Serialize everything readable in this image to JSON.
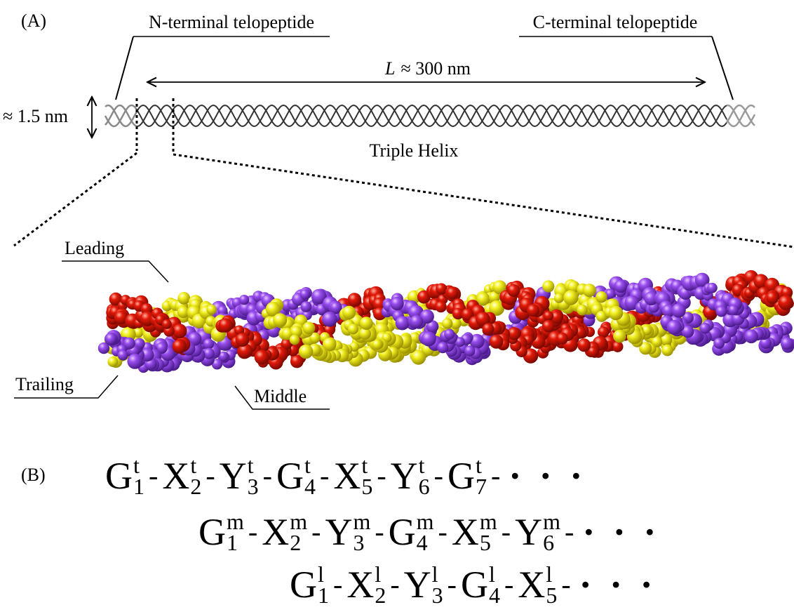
{
  "panel_a": {
    "label": "(A)",
    "n_terminal": "N-terminal telopeptide",
    "c_terminal": "C-terminal telopeptide",
    "length_symbol": "L",
    "length_value": "≈ 300 nm",
    "width": "≈ 1.5 nm",
    "helix": "Triple Helix",
    "strands": {
      "leading": "Leading",
      "trailing": "Trailing",
      "middle": "Middle"
    }
  },
  "panel_b": {
    "label": "(B)",
    "rows": [
      {
        "residues": [
          {
            "letter": "G",
            "chain": "t",
            "index": "1"
          },
          {
            "letter": "X",
            "chain": "t",
            "index": "2"
          },
          {
            "letter": "Y",
            "chain": "t",
            "index": "3"
          },
          {
            "letter": "G",
            "chain": "t",
            "index": "4"
          },
          {
            "letter": "X",
            "chain": "t",
            "index": "5"
          },
          {
            "letter": "Y",
            "chain": "t",
            "index": "6"
          },
          {
            "letter": "G",
            "chain": "t",
            "index": "7"
          }
        ],
        "separator": "-",
        "ellipsis": "· · ·"
      },
      {
        "residues": [
          {
            "letter": "G",
            "chain": "m",
            "index": "1"
          },
          {
            "letter": "X",
            "chain": "m",
            "index": "2"
          },
          {
            "letter": "Y",
            "chain": "m",
            "index": "3"
          },
          {
            "letter": "G",
            "chain": "m",
            "index": "4"
          },
          {
            "letter": "X",
            "chain": "m",
            "index": "5"
          },
          {
            "letter": "Y",
            "chain": "m",
            "index": "6"
          }
        ],
        "separator": "-",
        "ellipsis": "· · ·"
      },
      {
        "residues": [
          {
            "letter": "G",
            "chain": "l",
            "index": "1"
          },
          {
            "letter": "X",
            "chain": "l",
            "index": "2"
          },
          {
            "letter": "Y",
            "chain": "l",
            "index": "3"
          },
          {
            "letter": "G",
            "chain": "l",
            "index": "4"
          },
          {
            "letter": "X",
            "chain": "l",
            "index": "5"
          }
        ],
        "separator": "-",
        "ellipsis": "· · ·"
      }
    ]
  }
}
